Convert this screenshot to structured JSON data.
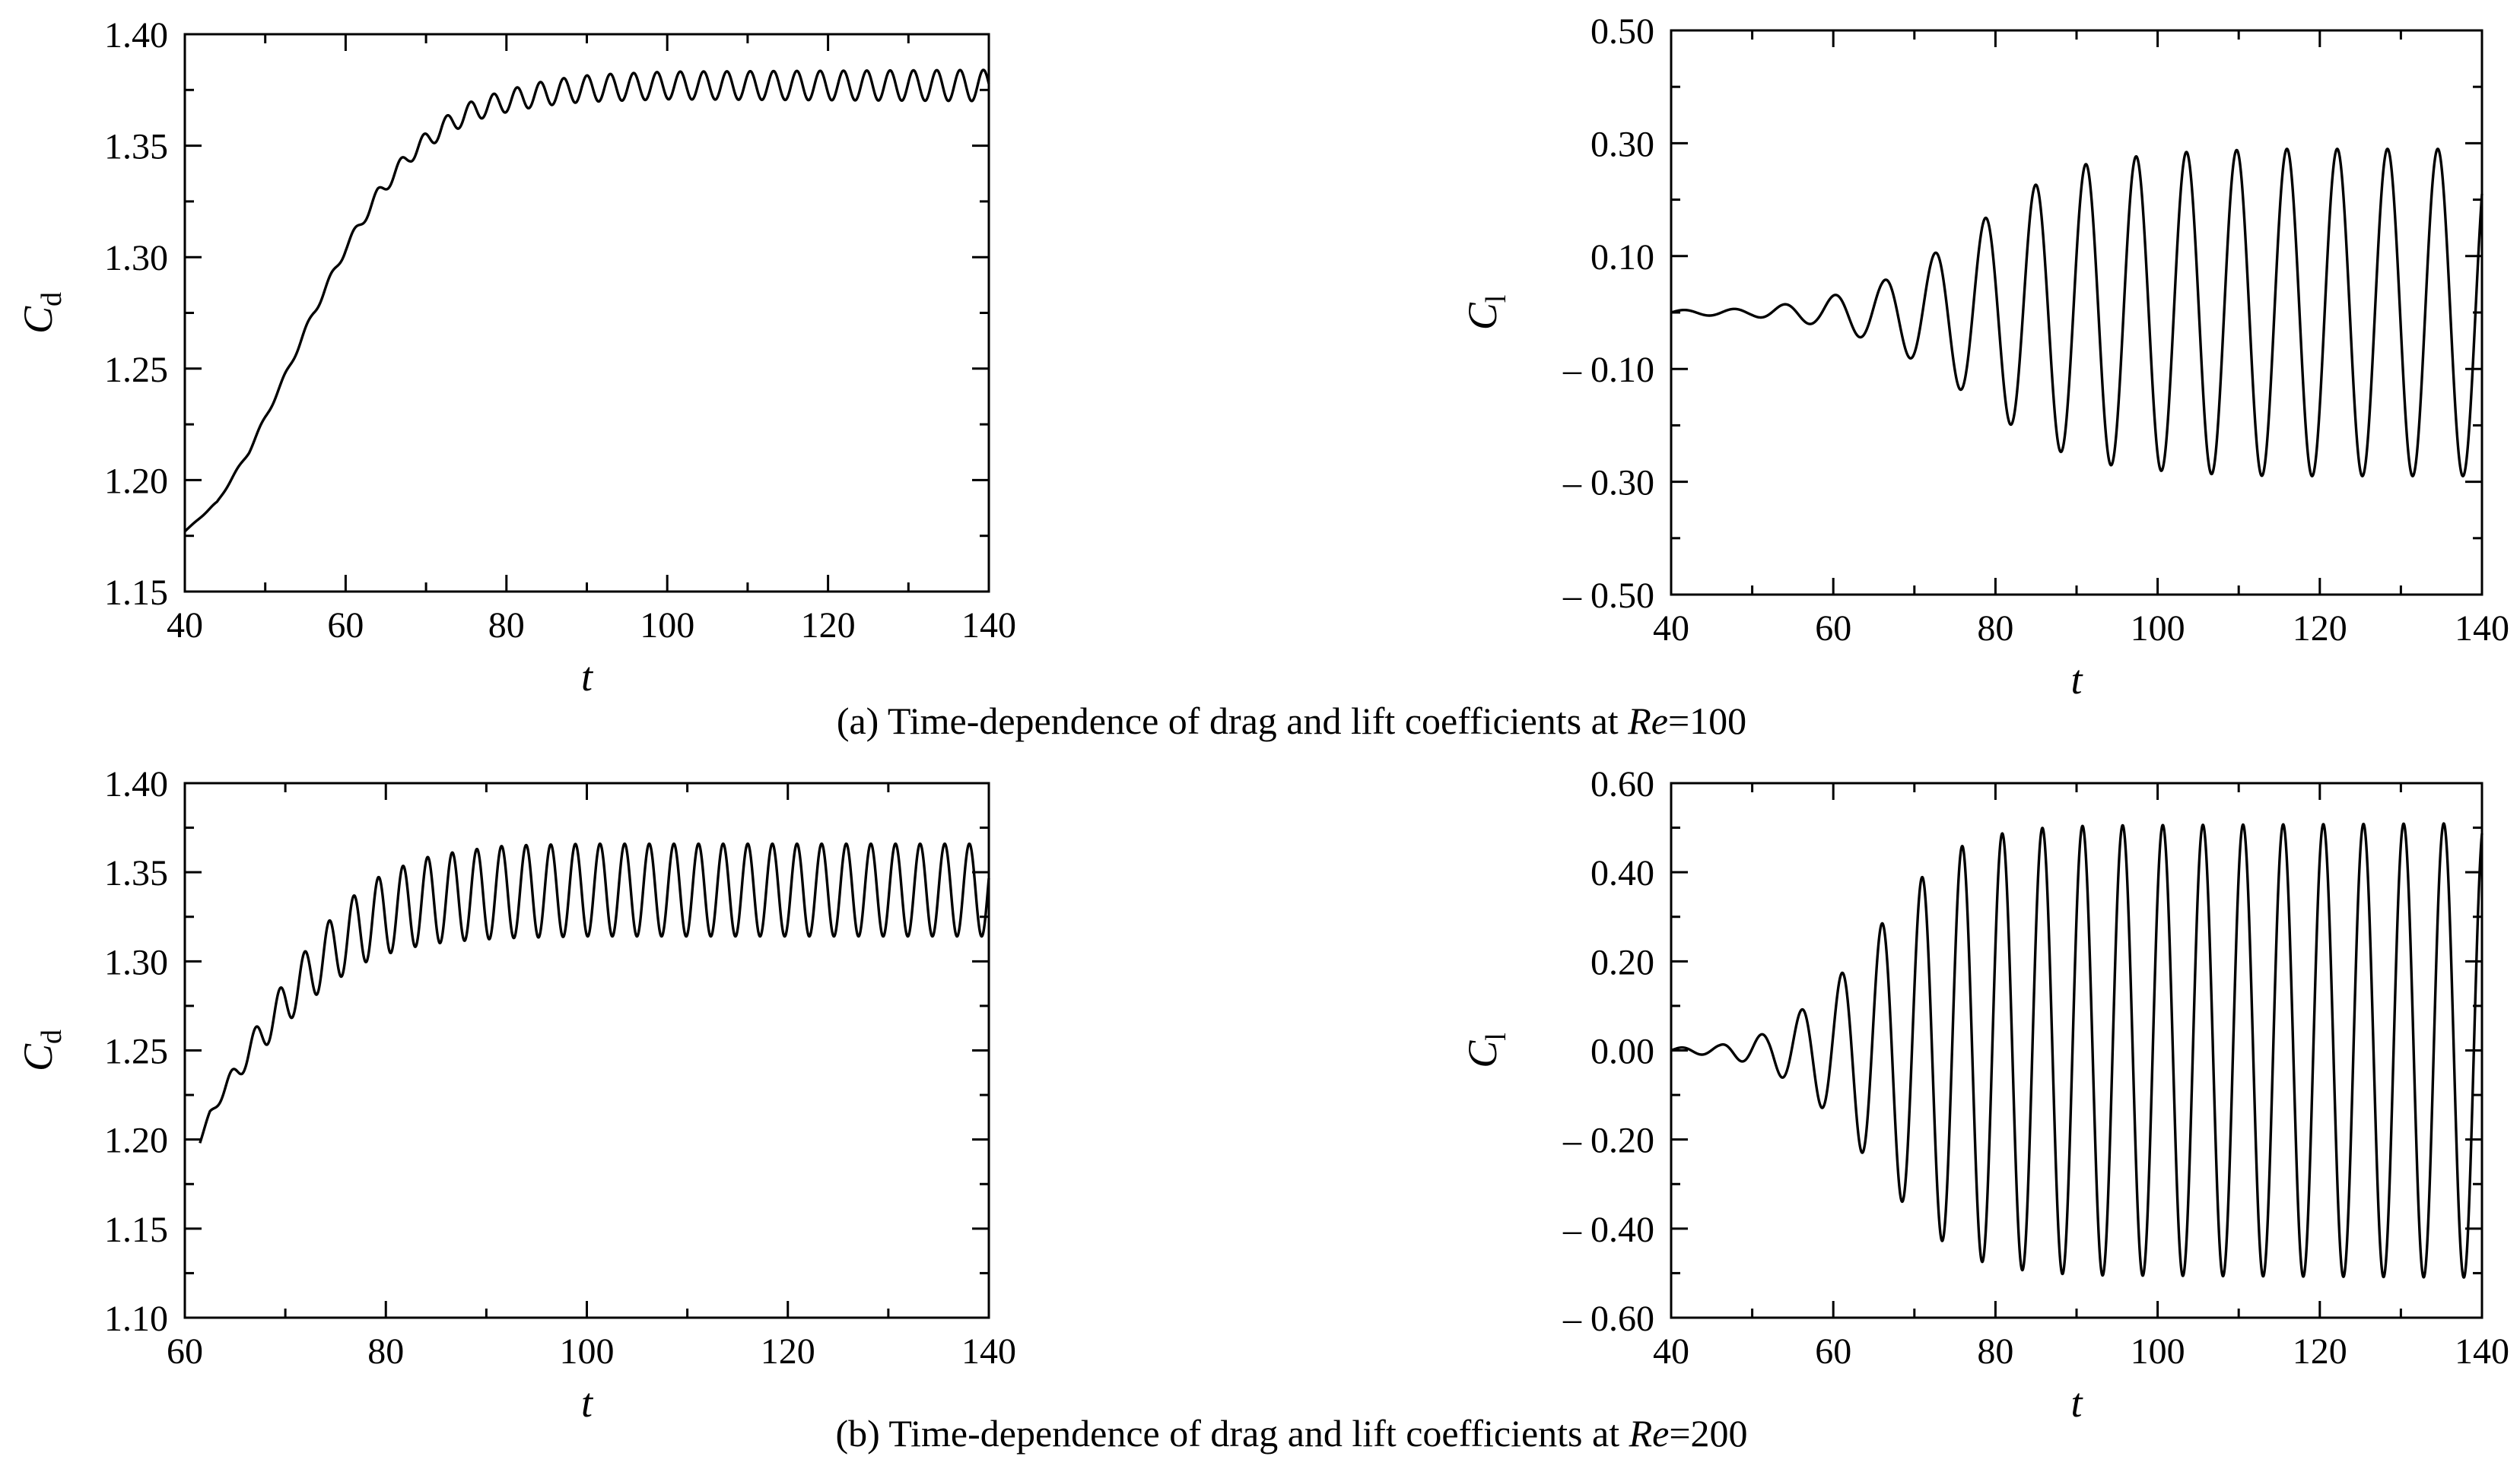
{
  "figure": {
    "caption_a": {
      "prefix": "(a) Time-dependence of drag and lift coefficients at ",
      "var": "Re",
      "suffix": "=100"
    },
    "caption_b": {
      "prefix": "(b) Time-dependence of drag and lift coefficients at ",
      "var": "Re",
      "suffix": "=200"
    }
  },
  "chart_data": [
    {
      "id": "a-drag",
      "type": "line",
      "xlabel": "t",
      "ylabel": {
        "main": "C",
        "sub": "d"
      },
      "xlim": [
        40,
        140
      ],
      "ylim": [
        1.15,
        1.4
      ],
      "xticks": [
        40,
        60,
        80,
        100,
        120,
        140
      ],
      "xtick_labels": [
        "40",
        "60",
        "80",
        "100",
        "120",
        "140"
      ],
      "yticks": [
        1.15,
        1.2,
        1.25,
        1.3,
        1.35,
        1.4
      ],
      "ytick_labels": [
        "1.15",
        "1.20",
        "1.25",
        "1.30",
        "1.35",
        "1.40"
      ],
      "grid": false,
      "series": [
        {
          "points": [
            [
              40,
              1.177
            ],
            [
              44,
              1.19
            ],
            [
              48,
              1.213
            ],
            [
              52,
              1.243
            ],
            [
              56,
              1.275
            ],
            [
              60,
              1.304
            ],
            [
              64,
              1.328
            ],
            [
              68,
              1.346
            ],
            [
              72,
              1.358
            ],
            [
              76,
              1.366
            ],
            [
              80,
              1.37
            ],
            [
              84,
              1.373
            ],
            [
              88,
              1.375
            ],
            [
              92,
              1.376
            ],
            [
              100,
              1.377
            ],
            [
              120,
              1.377
            ],
            [
              140,
              1.377
            ]
          ],
          "osc_amplitude": [
            [
              40,
              0.0
            ],
            [
              60,
              0.002
            ],
            [
              70,
              0.004
            ],
            [
              80,
              0.005
            ],
            [
              90,
              0.006
            ],
            [
              140,
              0.007
            ]
          ],
          "osc_period": 2.9
        }
      ]
    },
    {
      "id": "a-lift",
      "type": "line",
      "xlabel": "t",
      "ylabel": {
        "main": "C",
        "sub": "l"
      },
      "xlim": [
        40,
        140
      ],
      "ylim": [
        -0.5,
        0.5
      ],
      "xticks": [
        40,
        60,
        80,
        100,
        120,
        140
      ],
      "xtick_labels": [
        "40",
        "60",
        "80",
        "100",
        "120",
        "140"
      ],
      "yticks": [
        -0.5,
        -0.3,
        -0.1,
        0.1,
        0.3,
        0.5
      ],
      "ytick_labels": [
        "– 0.50",
        "– 0.30",
        "– 0.10",
        "0.10",
        "0.30",
        "0.50"
      ],
      "grid": false,
      "series": [
        {
          "points": [
            [
              40,
              0.0
            ],
            [
              140,
              0.0
            ]
          ],
          "osc_amplitude": [
            [
              40,
              0.004
            ],
            [
              50,
              0.007
            ],
            [
              58,
              0.022
            ],
            [
              66,
              0.055
            ],
            [
              72,
              0.1
            ],
            [
              78,
              0.16
            ],
            [
              84,
              0.22
            ],
            [
              90,
              0.26
            ],
            [
              96,
              0.275
            ],
            [
              104,
              0.285
            ],
            [
              114,
              0.29
            ],
            [
              140,
              0.29
            ]
          ],
          "osc_period": 6.2
        }
      ]
    },
    {
      "id": "b-drag",
      "type": "line",
      "xlabel": "t",
      "ylabel": {
        "main": "C",
        "sub": "d"
      },
      "xlim": [
        60,
        140
      ],
      "ylim": [
        1.1,
        1.4
      ],
      "xticks": [
        60,
        80,
        100,
        120,
        140
      ],
      "xtick_labels": [
        "60",
        "80",
        "100",
        "120",
        "140"
      ],
      "yticks": [
        1.1,
        1.15,
        1.2,
        1.25,
        1.3,
        1.35,
        1.4
      ],
      "ytick_labels": [
        "1.10",
        "1.15",
        "1.20",
        "1.25",
        "1.30",
        "1.35",
        "1.40"
      ],
      "grid": false,
      "series": [
        {
          "points": [
            [
              61.5,
              1.198
            ],
            [
              62.5,
              1.215
            ],
            [
              64,
              1.228
            ],
            [
              66,
              1.246
            ],
            [
              68,
              1.262
            ],
            [
              70,
              1.277
            ],
            [
              72,
              1.291
            ],
            [
              74,
              1.303
            ],
            [
              76,
              1.313
            ],
            [
              78,
              1.321
            ],
            [
              80,
              1.327
            ],
            [
              84,
              1.334
            ],
            [
              88,
              1.337
            ],
            [
              92,
              1.339
            ],
            [
              100,
              1.34
            ],
            [
              140,
              1.34
            ]
          ],
          "osc_amplitude": [
            [
              61.5,
              0.0
            ],
            [
              64,
              0.004
            ],
            [
              68,
              0.01
            ],
            [
              72,
              0.015
            ],
            [
              76,
              0.02
            ],
            [
              80,
              0.023
            ],
            [
              86,
              0.025
            ],
            [
              92,
              0.026
            ],
            [
              140,
              0.026
            ]
          ],
          "osc_period": 2.45
        }
      ]
    },
    {
      "id": "b-lift",
      "type": "line",
      "xlabel": "t",
      "ylabel": {
        "main": "C",
        "sub": "l"
      },
      "xlim": [
        40,
        140
      ],
      "ylim": [
        -0.6,
        0.6
      ],
      "xticks": [
        40,
        60,
        80,
        100,
        120,
        140
      ],
      "xtick_labels": [
        "40",
        "60",
        "80",
        "100",
        "120",
        "140"
      ],
      "yticks": [
        -0.6,
        -0.4,
        -0.2,
        0.0,
        0.2,
        0.4,
        0.6
      ],
      "ytick_labels": [
        "– 0.60",
        "– 0.40",
        "– 0.20",
        "0.00",
        "0.20",
        "0.40",
        "0.60"
      ],
      "grid": false,
      "series": [
        {
          "points": [
            [
              40,
              0.0
            ],
            [
              140,
              0.0
            ]
          ],
          "osc_amplitude": [
            [
              40,
              0.005
            ],
            [
              46,
              0.012
            ],
            [
              52,
              0.04
            ],
            [
              56,
              0.09
            ],
            [
              60,
              0.15
            ],
            [
              64,
              0.24
            ],
            [
              68,
              0.33
            ],
            [
              72,
              0.41
            ],
            [
              76,
              0.46
            ],
            [
              80,
              0.485
            ],
            [
              86,
              0.5
            ],
            [
              92,
              0.505
            ],
            [
              140,
              0.51
            ]
          ],
          "osc_period": 4.95
        }
      ]
    }
  ]
}
